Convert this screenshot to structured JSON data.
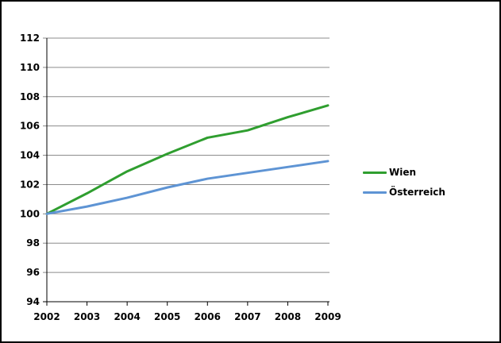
{
  "chart_data": {
    "type": "line",
    "title": "",
    "xlabel": "",
    "ylabel": "",
    "x": [
      2002,
      2003,
      2004,
      2005,
      2006,
      2007,
      2008,
      2009
    ],
    "x_ticks": [
      "2002",
      "2003",
      "2004",
      "2005",
      "2006",
      "2007",
      "2008",
      "2009"
    ],
    "y_ticks": [
      "94",
      "96",
      "98",
      "100",
      "102",
      "104",
      "106",
      "108",
      "110",
      "112"
    ],
    "ylim": [
      94,
      112
    ],
    "ytick_step": 2,
    "grid": true,
    "legend_position": "right",
    "series": [
      {
        "name": "Wien",
        "color": "#2f9e2f",
        "values": [
          100,
          101.4,
          102.9,
          104.1,
          105.2,
          105.7,
          106.6,
          107.4
        ]
      },
      {
        "name": "Österreich",
        "color": "#5e94d4",
        "values": [
          100,
          100.5,
          101.1,
          101.8,
          102.4,
          102.8,
          103.2,
          103.6
        ]
      }
    ],
    "colors": {
      "gridline": "#8c8c8c",
      "axis": "#000000",
      "tick_label": "#000000",
      "background": "#ffffff",
      "frame_border": "#000000"
    }
  }
}
